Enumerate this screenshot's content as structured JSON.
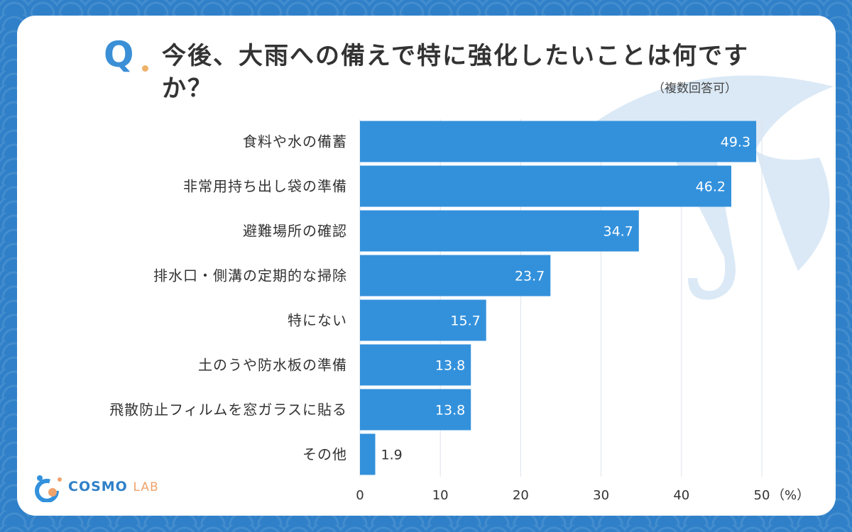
{
  "header": {
    "q_label": "Q",
    "title": "今後、大雨への備えで特に強化したいことは何ですか？",
    "note": "（複数回答可）"
  },
  "logo": {
    "name_part1": "COSMO",
    "name_part2": "LAB"
  },
  "colors": {
    "bar": "#3391dc",
    "accent": "#3b8fd6",
    "grid": "#dde3ea"
  },
  "chart_data": {
    "type": "bar",
    "orientation": "horizontal",
    "categories": [
      "食料や水の備蓄",
      "非常用持ち出し袋の準備",
      "避難場所の確認",
      "排水口・側溝の定期的な掃除",
      "特にない",
      "土のうや防水板の準備",
      "飛散防止フィルムを窓ガラスに貼る",
      "その他"
    ],
    "values": [
      49.3,
      46.2,
      34.7,
      23.7,
      15.7,
      13.8,
      13.8,
      1.9
    ],
    "xlim": [
      0,
      50
    ],
    "xticks": [
      0,
      10,
      20,
      30,
      40,
      50
    ],
    "x_unit": "（%）",
    "grid": true
  }
}
